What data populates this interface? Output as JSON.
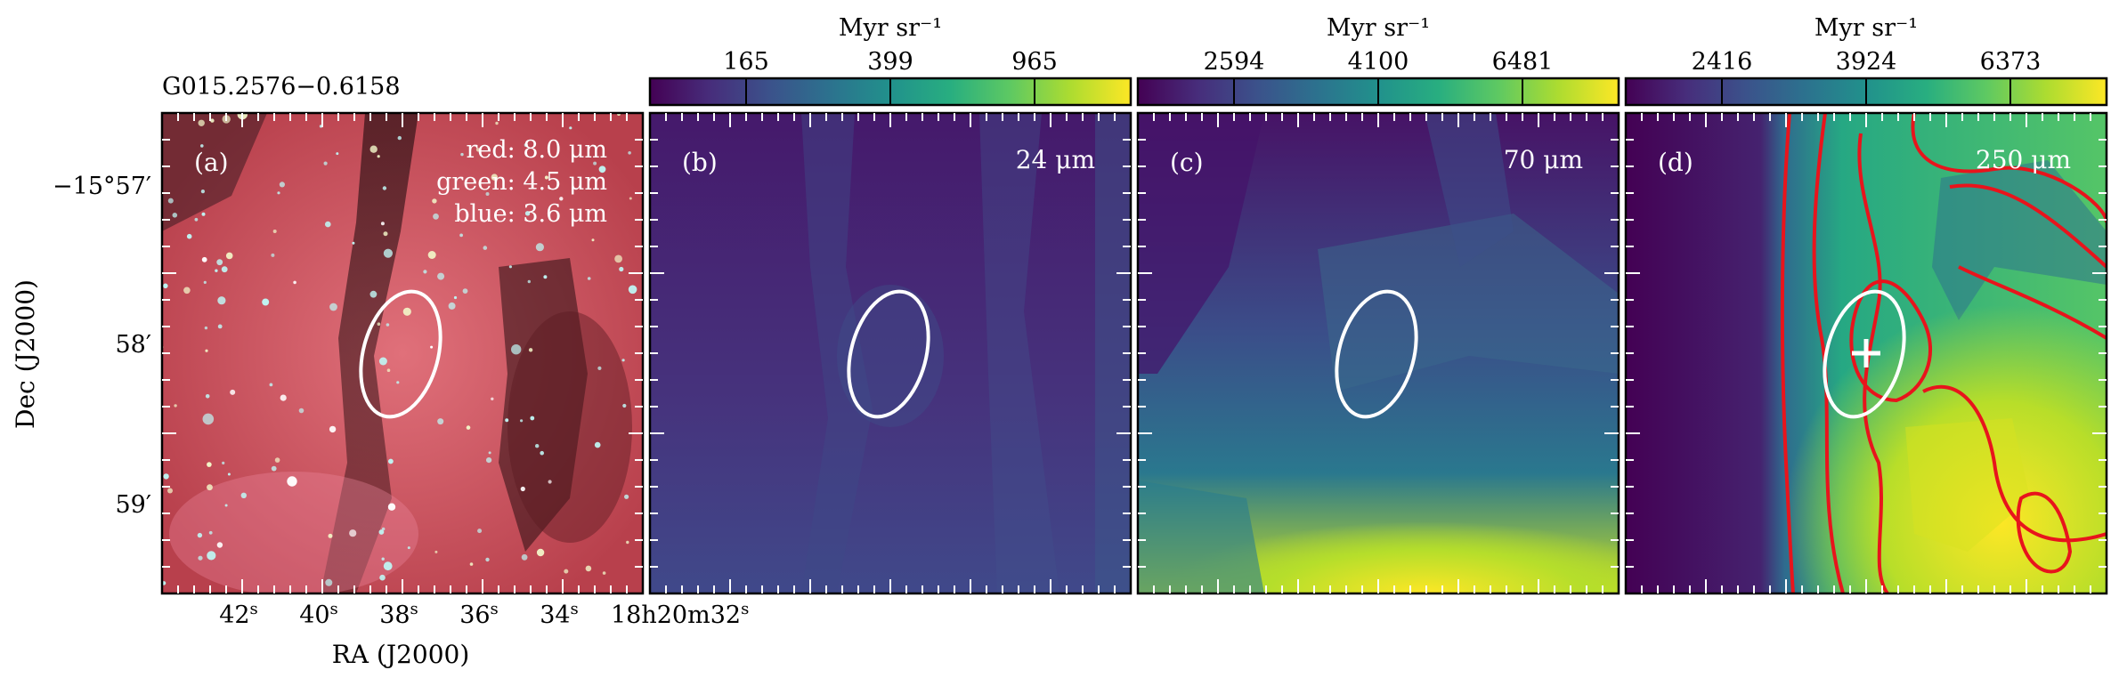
{
  "source_label": "G015.2576−0.6158",
  "axes": {
    "xlabel": "RA (J2000)",
    "ylabel": "Dec (J2000)",
    "ra_ticks": [
      "42",
      "40",
      "38",
      "36",
      "34",
      "18h20m32"
    ],
    "dec_ticks": [
      "−15°57′",
      "58′",
      "59′"
    ]
  },
  "colors": {
    "ellipse": "#ffffff",
    "contour": "#e8141c",
    "frame": "#000000",
    "viridis": [
      "#440154",
      "#472d7b",
      "#3b528b",
      "#2c728e",
      "#21918c",
      "#28ae80",
      "#5ec962",
      "#addc30",
      "#fde725"
    ]
  },
  "panels": [
    {
      "id": "a",
      "label": "(a)",
      "composite_legend": [
        "red: 8.0 μm",
        "green: 4.5 μm",
        "blue: 3.6 μm"
      ],
      "image": "rgb-composite"
    },
    {
      "id": "b",
      "label": "(b)",
      "wavelength": "24 μm",
      "colorbar": {
        "unit": "Myr sr⁻¹",
        "ticks": [
          "165",
          "399",
          "965"
        ]
      }
    },
    {
      "id": "c",
      "label": "(c)",
      "wavelength": "70 μm",
      "colorbar": {
        "unit": "Myr sr⁻¹",
        "ticks": [
          "2594",
          "4100",
          "6481"
        ]
      }
    },
    {
      "id": "d",
      "label": "(d)",
      "wavelength": "250 μm",
      "colorbar": {
        "unit": "Myr sr⁻¹",
        "ticks": [
          "2416",
          "3924",
          "6373"
        ]
      },
      "contours": true,
      "peak_marker": "cross"
    }
  ]
}
